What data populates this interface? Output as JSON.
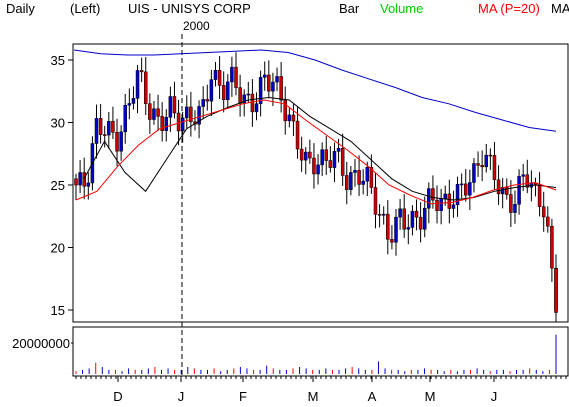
{
  "header": {
    "period": "Daily",
    "scale": "(Left)",
    "title": "UIS - UNISYS CORP",
    "year": "2000",
    "legend_bar": "Bar",
    "legend_volume": "Volume",
    "legend_ma20": "MA (P=20)",
    "legend_ma_more": "MA"
  },
  "colors": {
    "up": "#0000cc",
    "down": "#cc0000",
    "ma20": "#ff0000",
    "ma_mid": "#000000",
    "ma_long": "#0000cc",
    "volume_green": "#00cc00",
    "volume_red": "#ff0000"
  },
  "chart_data": {
    "type": "candlestick",
    "title": "UIS - UNISYS CORP",
    "ylim": [
      14,
      36
    ],
    "yticks": [
      15,
      20,
      25,
      30,
      35
    ],
    "x_months": [
      "D",
      "J",
      "F",
      "M",
      "A",
      "M",
      "J"
    ],
    "volume_tick": "20000000",
    "approx_close_by_month": {
      "Nov": [
        25.0,
        24.5,
        29.5,
        30.0
      ],
      "Dec": [
        29.0,
        31.0,
        33.5,
        31.0,
        30.5
      ],
      "Jan": [
        31.5,
        29.5,
        30.0,
        31.0,
        34.5,
        32.5
      ],
      "Feb": [
        33.0,
        31.5,
        32.0,
        34.0,
        33.0,
        30.5
      ],
      "Mar": [
        29.0,
        27.5,
        27.0,
        26.5,
        27.0,
        25.5,
        26.5
      ],
      "Apr": [
        25.5,
        22.0,
        20.5,
        23.0,
        22.5,
        22.0
      ],
      "May": [
        23.5,
        23.5,
        24.5,
        25.0,
        25.0,
        27.0
      ],
      "Jun": [
        26.5,
        24.5,
        23.5,
        25.5,
        24.0,
        23.5,
        15.0
      ]
    },
    "ma20_approx": [
      23.8,
      24.5,
      26.5,
      28.2,
      29.5,
      30.0,
      30.5,
      31.0,
      31.5,
      31.8,
      31.5,
      30.2,
      29.0,
      27.8,
      26.5,
      25.0,
      24.2,
      23.5,
      23.6,
      24.0,
      24.6,
      25.0,
      25.2,
      24.6
    ],
    "ma_mid_approx": [
      25.5,
      28.5,
      26.0,
      24.5,
      27.0,
      29.5,
      30.5,
      31.2,
      31.8,
      32.0,
      31.8,
      30.5,
      29.5,
      28.5,
      27.0,
      25.5,
      24.5,
      24.0,
      23.8,
      24.0,
      24.5,
      24.8,
      25.0,
      24.8
    ],
    "ma_long_approx": [
      35.8,
      35.5,
      35.4,
      35.4,
      35.5,
      35.6,
      35.7,
      35.8,
      35.6,
      35.0,
      34.2,
      33.5,
      32.8,
      32.0,
      31.5,
      30.8,
      30.2,
      29.6,
      29.3
    ],
    "volume_approx_millions": [
      2,
      3,
      4,
      8,
      5,
      3,
      3,
      2,
      4,
      3,
      3,
      4,
      5,
      3,
      4,
      3,
      3,
      5,
      4,
      3,
      3,
      4,
      2,
      3,
      4,
      5,
      4,
      3,
      3,
      6,
      4,
      3,
      3,
      4,
      5,
      4,
      3,
      3,
      4,
      3,
      3,
      4,
      5,
      4,
      3,
      3,
      9,
      4,
      3,
      3,
      2,
      3,
      3,
      4,
      3,
      3,
      2,
      3,
      2,
      3,
      3,
      4,
      3,
      2,
      3,
      3,
      2,
      3,
      3,
      4,
      3,
      2,
      3,
      28
    ]
  }
}
